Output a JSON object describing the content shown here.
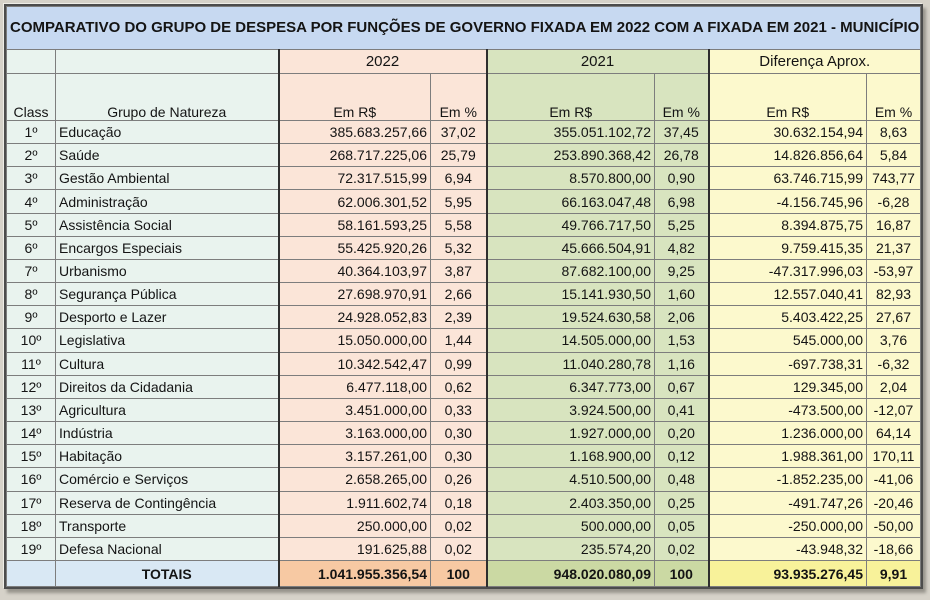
{
  "title": "COMPARATIVO DO GRUPO DE DESPESA POR FUNÇÕES DE GOVERNO FIXADA EM 2022 COM A FIXADA EM 2021 - MUNICÍPIO",
  "column_groups": [
    {
      "label": "2022"
    },
    {
      "label": "2021"
    },
    {
      "label": "Diferença Aprox."
    }
  ],
  "columns": {
    "class": "Class",
    "group": "Grupo de Natureza",
    "amount": "Em R$",
    "percent": "Em %"
  },
  "rows": [
    {
      "class": "1º",
      "group": "Educação",
      "r2022": "385.683.257,66",
      "p2022": "37,02",
      "r2021": "355.051.102,72",
      "p2021": "37,45",
      "rdif": "30.632.154,94",
      "pdif": "8,63"
    },
    {
      "class": "2º",
      "group": "Saúde",
      "r2022": "268.717.225,06",
      "p2022": "25,79",
      "r2021": "253.890.368,42",
      "p2021": "26,78",
      "rdif": "14.826.856,64",
      "pdif": "5,84"
    },
    {
      "class": "3º",
      "group": "Gestão Ambiental",
      "r2022": "72.317.515,99",
      "p2022": "6,94",
      "r2021": "8.570.800,00",
      "p2021": "0,90",
      "rdif": "63.746.715,99",
      "pdif": "743,77"
    },
    {
      "class": "4º",
      "group": "Administração",
      "r2022": "62.006.301,52",
      "p2022": "5,95",
      "r2021": "66.163.047,48",
      "p2021": "6,98",
      "rdif": "-4.156.745,96",
      "pdif": "-6,28"
    },
    {
      "class": "5º",
      "group": "Assistência Social",
      "r2022": "58.161.593,25",
      "p2022": "5,58",
      "r2021": "49.766.717,50",
      "p2021": "5,25",
      "rdif": "8.394.875,75",
      "pdif": "16,87"
    },
    {
      "class": "6º",
      "group": "Encargos Especiais",
      "r2022": "55.425.920,26",
      "p2022": "5,32",
      "r2021": "45.666.504,91",
      "p2021": "4,82",
      "rdif": "9.759.415,35",
      "pdif": "21,37"
    },
    {
      "class": "7º",
      "group": "Urbanismo",
      "r2022": "40.364.103,97",
      "p2022": "3,87",
      "r2021": "87.682.100,00",
      "p2021": "9,25",
      "rdif": "-47.317.996,03",
      "pdif": "-53,97"
    },
    {
      "class": "8º",
      "group": "Segurança Pública",
      "r2022": "27.698.970,91",
      "p2022": "2,66",
      "r2021": "15.141.930,50",
      "p2021": "1,60",
      "rdif": "12.557.040,41",
      "pdif": "82,93"
    },
    {
      "class": "9º",
      "group": "Desporto e Lazer",
      "r2022": "24.928.052,83",
      "p2022": "2,39",
      "r2021": "19.524.630,58",
      "p2021": "2,06",
      "rdif": "5.403.422,25",
      "pdif": "27,67"
    },
    {
      "class": "10º",
      "group": "Legislativa",
      "r2022": "15.050.000,00",
      "p2022": "1,44",
      "r2021": "14.505.000,00",
      "p2021": "1,53",
      "rdif": "545.000,00",
      "pdif": "3,76"
    },
    {
      "class": "11º",
      "group": "Cultura",
      "r2022": "10.342.542,47",
      "p2022": "0,99",
      "r2021": "11.040.280,78",
      "p2021": "1,16",
      "rdif": "-697.738,31",
      "pdif": "-6,32"
    },
    {
      "class": "12º",
      "group": "Direitos da Cidadania",
      "r2022": "6.477.118,00",
      "p2022": "0,62",
      "r2021": "6.347.773,00",
      "p2021": "0,67",
      "rdif": "129.345,00",
      "pdif": "2,04"
    },
    {
      "class": "13º",
      "group": "Agricultura",
      "r2022": "3.451.000,00",
      "p2022": "0,33",
      "r2021": "3.924.500,00",
      "p2021": "0,41",
      "rdif": "-473.500,00",
      "pdif": "-12,07"
    },
    {
      "class": "14º",
      "group": "Indústria",
      "r2022": "3.163.000,00",
      "p2022": "0,30",
      "r2021": "1.927.000,00",
      "p2021": "0,20",
      "rdif": "1.236.000,00",
      "pdif": "64,14"
    },
    {
      "class": "15º",
      "group": "Habitação",
      "r2022": "3.157.261,00",
      "p2022": "0,30",
      "r2021": "1.168.900,00",
      "p2021": "0,12",
      "rdif": "1.988.361,00",
      "pdif": "170,11"
    },
    {
      "class": "16º",
      "group": "Comércio e Serviços",
      "r2022": "2.658.265,00",
      "p2022": "0,26",
      "r2021": "4.510.500,00",
      "p2021": "0,48",
      "rdif": "-1.852.235,00",
      "pdif": "-41,06"
    },
    {
      "class": "17º",
      "group": "Reserva de Contingência",
      "r2022": "1.911.602,74",
      "p2022": "0,18",
      "r2021": "2.403.350,00",
      "p2021": "0,25",
      "rdif": "-491.747,26",
      "pdif": "-20,46"
    },
    {
      "class": "18º",
      "group": "Transporte",
      "r2022": "250.000,00",
      "p2022": "0,02",
      "r2021": "500.000,00",
      "p2021": "0,05",
      "rdif": "-250.000,00",
      "pdif": "-50,00"
    },
    {
      "class": "19º",
      "group": "Defesa Nacional",
      "r2022": "191.625,88",
      "p2022": "0,02",
      "r2021": "235.574,20",
      "p2021": "0,02",
      "rdif": "-43.948,32",
      "pdif": "-18,66"
    }
  ],
  "totals": {
    "label": "TOTAIS",
    "r2022": "1.041.955.356,54",
    "p2022": "100",
    "r2021": "948.020.080,09",
    "p2021": "100",
    "rdif": "93.935.276,45",
    "pdif": "9,91"
  },
  "colors": {
    "page_bg": "#d6d2c9",
    "title_bg": "#c7d9f1",
    "mint": "#e9f3ee",
    "salmon": "#fbe5d8",
    "green": "#d8e4bf",
    "yellow": "#fcf9cd",
    "totals_blue": "#d9e8f4",
    "totals_salmon": "#f7c9a3",
    "totals_green": "#cbd9a3",
    "totals_yellow": "#f8f29a",
    "border_dark": "#2e2e2e",
    "border_light": "#7d7d7d"
  }
}
